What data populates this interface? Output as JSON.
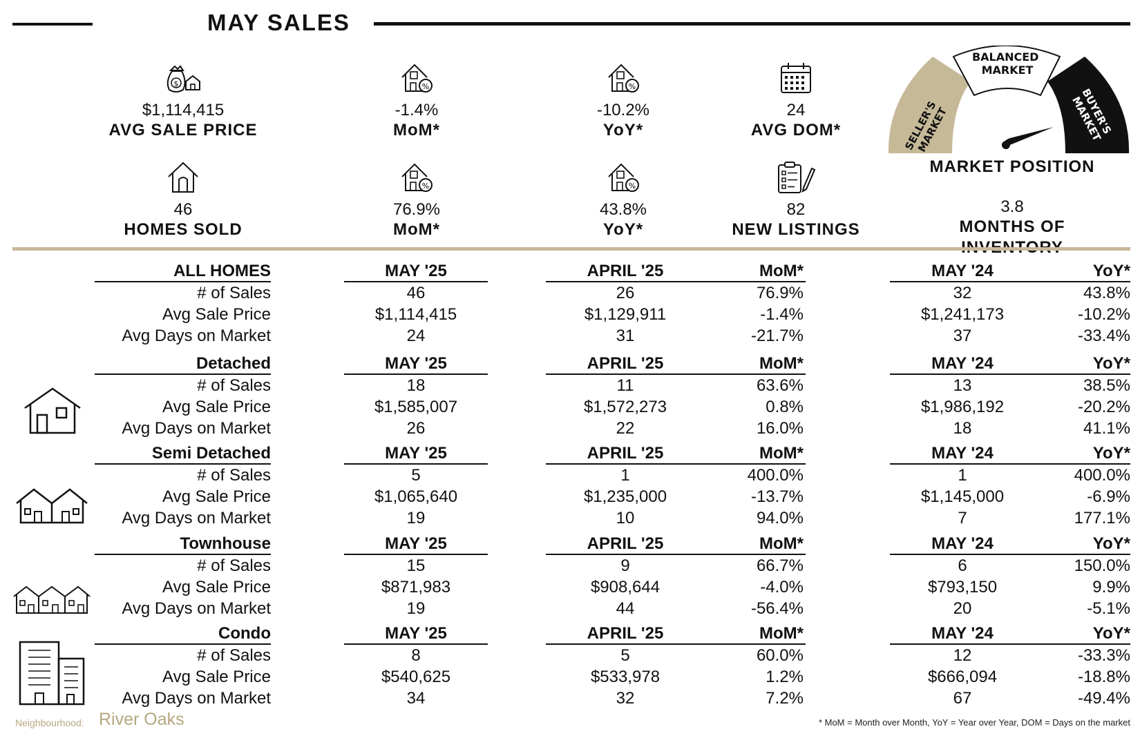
{
  "title": "MAY SALES",
  "kpis": {
    "avg_sale_price": {
      "value": "$1,114,415",
      "label": "AVG SALE PRICE"
    },
    "price_mom": {
      "value": "-1.4%",
      "label": "MoM*"
    },
    "price_yoy": {
      "value": "-10.2%",
      "label": "YoY*"
    },
    "avg_dom": {
      "value": "24",
      "label": "AVG DOM*"
    },
    "homes_sold": {
      "value": "46",
      "label": "HOMES SOLD"
    },
    "sold_mom": {
      "value": "76.9%",
      "label": "MoM*"
    },
    "sold_yoy": {
      "value": "43.8%",
      "label": "YoY*"
    },
    "new_listings": {
      "value": "82",
      "label": "NEW LISTINGS"
    },
    "months_inventory": {
      "value": "3.8",
      "label": "MONTHS OF INVENTORY"
    }
  },
  "gauge": {
    "label": "MARKET POSITION",
    "sellers": [
      "SELLER'S",
      "MARKET"
    ],
    "balanced": [
      "BALANCED",
      "MARKET"
    ],
    "buyers": [
      "BUYER'S",
      "MARKET"
    ],
    "colors": {
      "sellers": "#c6b998",
      "balanced": "#ffffff",
      "buyers": "#111111"
    }
  },
  "table": {
    "col_headers": {
      "current": "MAY '25",
      "previous": "APRIL '25",
      "mom": "MoM*",
      "last_year": "MAY '24",
      "yoy": "YoY*"
    },
    "sections": [
      {
        "name": "ALL HOMES",
        "icon": "none",
        "rows": [
          {
            "metric": "# of Sales",
            "current": "46",
            "previous": "26",
            "mom": "76.9%",
            "last_year": "32",
            "yoy": "43.8%"
          },
          {
            "metric": "Avg Sale Price",
            "current": "$1,114,415",
            "previous": "$1,129,911",
            "mom": "-1.4%",
            "last_year": "$1,241,173",
            "yoy": "-10.2%"
          },
          {
            "metric": "Avg Days on Market",
            "current": "24",
            "previous": "31",
            "mom": "-21.7%",
            "last_year": "37",
            "yoy": "-33.4%"
          }
        ]
      },
      {
        "name": "Detached",
        "icon": "detached-house-icon",
        "rows": [
          {
            "metric": "# of Sales",
            "current": "18",
            "previous": "11",
            "mom": "63.6%",
            "last_year": "13",
            "yoy": "38.5%"
          },
          {
            "metric": "Avg Sale Price",
            "current": "$1,585,007",
            "previous": "$1,572,273",
            "mom": "0.8%",
            "last_year": "$1,986,192",
            "yoy": "-20.2%"
          },
          {
            "metric": "Avg Days on Market",
            "current": "26",
            "previous": "22",
            "mom": "16.0%",
            "last_year": "18",
            "yoy": "41.1%"
          }
        ]
      },
      {
        "name": "Semi Detached",
        "icon": "semi-detached-icon",
        "rows": [
          {
            "metric": "# of Sales",
            "current": "5",
            "previous": "1",
            "mom": "400.0%",
            "last_year": "1",
            "yoy": "400.0%"
          },
          {
            "metric": "Avg Sale Price",
            "current": "$1,065,640",
            "previous": "$1,235,000",
            "mom": "-13.7%",
            "last_year": "$1,145,000",
            "yoy": "-6.9%"
          },
          {
            "metric": "Avg Days on Market",
            "current": "19",
            "previous": "10",
            "mom": "94.0%",
            "last_year": "7",
            "yoy": "177.1%"
          }
        ]
      },
      {
        "name": "Townhouse",
        "icon": "townhouse-icon",
        "rows": [
          {
            "metric": "# of Sales",
            "current": "15",
            "previous": "9",
            "mom": "66.7%",
            "last_year": "6",
            "yoy": "150.0%"
          },
          {
            "metric": "Avg Sale Price",
            "current": "$871,983",
            "previous": "$908,644",
            "mom": "-4.0%",
            "last_year": "$793,150",
            "yoy": "9.9%"
          },
          {
            "metric": "Avg Days on Market",
            "current": "19",
            "previous": "44",
            "mom": "-56.4%",
            "last_year": "20",
            "yoy": "-5.1%"
          }
        ]
      },
      {
        "name": "Condo",
        "icon": "condo-building-icon",
        "rows": [
          {
            "metric": "# of Sales",
            "current": "8",
            "previous": "5",
            "mom": "60.0%",
            "last_year": "12",
            "yoy": "-33.3%"
          },
          {
            "metric": "Avg Sale Price",
            "current": "$540,625",
            "previous": "$533,978",
            "mom": "1.2%",
            "last_year": "$666,094",
            "yoy": "-18.8%"
          },
          {
            "metric": "Avg Days on Market",
            "current": "34",
            "previous": "32",
            "mom": "7.2%",
            "last_year": "67",
            "yoy": "-49.4%"
          }
        ]
      }
    ]
  },
  "footer": {
    "neighbourhood_label": "Neighbourhood:",
    "neighbourhood": "River Oaks",
    "footnote": "* MoM = Month over Month, YoY = Year over Year, DOM = Days on the market"
  }
}
